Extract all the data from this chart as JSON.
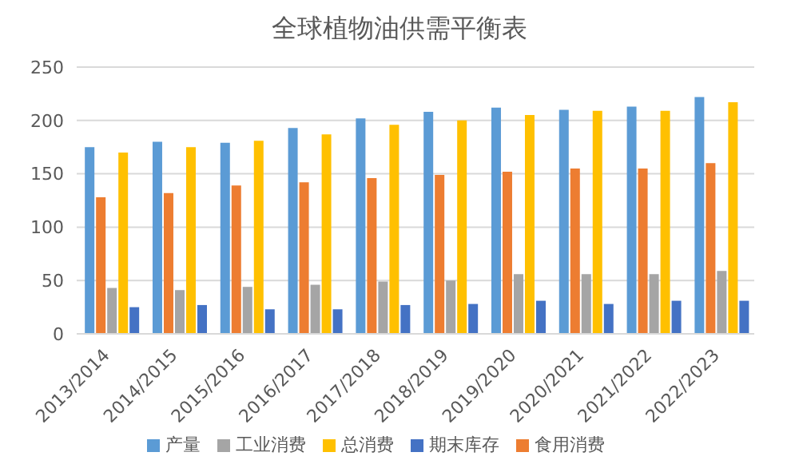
{
  "chart_data": {
    "type": "bar",
    "title": "全球植物油供需平衡表",
    "categories": [
      "2013/2014",
      "2014/2015",
      "2015/2016",
      "2016/2017",
      "2017/2018",
      "2018/2019",
      "2019/2020",
      "2020/2021",
      "2021/2022",
      "2022/2023"
    ],
    "series": [
      {
        "name": "产量",
        "color": "#5b9bd5",
        "values": [
          175,
          180,
          179,
          193,
          202,
          208,
          212,
          210,
          213,
          222
        ]
      },
      {
        "name": "食用消费",
        "color": "#ed7d31",
        "values": [
          128,
          132,
          139,
          142,
          146,
          149,
          152,
          155,
          155,
          160
        ]
      },
      {
        "name": "工业消费",
        "color": "#a5a5a5",
        "values": [
          43,
          41,
          44,
          46,
          49,
          50,
          56,
          56,
          56,
          59
        ]
      },
      {
        "name": "总消费",
        "color": "#ffc000",
        "values": [
          170,
          175,
          181,
          187,
          196,
          200,
          205,
          209,
          209,
          217
        ]
      },
      {
        "name": "期末库存",
        "color": "#4472c4",
        "values": [
          25,
          27,
          23,
          23,
          27,
          28,
          31,
          28,
          31,
          31
        ]
      }
    ],
    "ylim": [
      0,
      250
    ],
    "yticks": [
      0,
      50,
      100,
      150,
      200,
      250
    ],
    "grid": "y",
    "legend": "bottom"
  }
}
